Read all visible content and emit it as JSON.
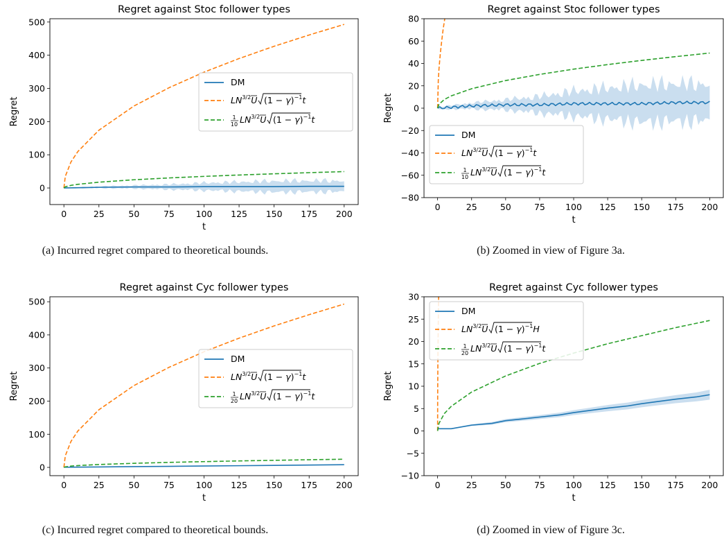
{
  "captions": [
    "(a) Incurred regret compared to theoretical bounds.",
    "(b) Zoomed in view of Figure 3a.",
    "(c) Incurred regret compared to theoretical bounds.",
    "(d) Zoomed in view of Figure 3c."
  ],
  "colors": {
    "dm": "#1f77b4",
    "bound": "#ff7f0e",
    "scaled_bound": "#2ca02c",
    "band": "#a6c8e4"
  },
  "chart_data": [
    {
      "type": "line",
      "title": "Regret against Stoc follower types",
      "xlabel": "t",
      "ylabel": "Regret",
      "xlim": [
        -10,
        210
      ],
      "ylim": [
        -50,
        510
      ],
      "xticks": [
        0,
        25,
        50,
        75,
        100,
        125,
        150,
        175,
        200
      ],
      "yticks": [
        0,
        100,
        200,
        300,
        400,
        500
      ],
      "legend_position": "center-right",
      "legend": [
        "DM",
        "LN^{3/2}Ū√((1−γ)^{−1}t)",
        "1/10 LN^{3/2}Ū√((1−γ)^{−1}t)"
      ],
      "series": [
        {
          "name": "DM",
          "style": "solid",
          "x": [
            0,
            25,
            50,
            75,
            100,
            125,
            150,
            175,
            200
          ],
          "y": [
            0,
            2,
            3,
            3,
            4,
            4,
            4,
            5,
            5
          ],
          "band_half_width": [
            1,
            3,
            5,
            8,
            12,
            15,
            18,
            18,
            18
          ]
        },
        {
          "name": "LN^{3/2}Ū√((1−γ)^{−1}t)",
          "style": "dashed",
          "x": [
            0,
            1,
            5,
            10,
            25,
            50,
            75,
            100,
            125,
            150,
            175,
            200
          ],
          "y": [
            0,
            35,
            78,
            110,
            174,
            247,
            302,
            349,
            390,
            427,
            461,
            493
          ]
        },
        {
          "name": "1/10 LN^{3/2}Ū√((1−γ)^{−1}t)",
          "style": "dashed",
          "x": [
            0,
            1,
            5,
            10,
            25,
            50,
            75,
            100,
            125,
            150,
            175,
            200
          ],
          "y": [
            0,
            3.5,
            7.8,
            11,
            17.4,
            24.7,
            30.2,
            34.9,
            39,
            42.7,
            46.1,
            49.3
          ]
        }
      ]
    },
    {
      "type": "line",
      "title": "Regret against Stoc follower types",
      "xlabel": "t",
      "ylabel": "Regret",
      "xlim": [
        -10,
        210
      ],
      "ylim": [
        -80,
        80
      ],
      "xticks": [
        0,
        25,
        50,
        75,
        100,
        125,
        150,
        175,
        200
      ],
      "yticks": [
        -80,
        -60,
        -40,
        -20,
        0,
        20,
        40,
        60,
        80
      ],
      "legend_position": "lower-left",
      "legend": [
        "DM",
        "LN^{3/2}Ū√((1−γ)^{−1}t)",
        "1/10 LN^{3/2}Ū√((1−γ)^{−1}t)"
      ],
      "series": [
        {
          "name": "DM",
          "style": "solid",
          "x": [
            0,
            25,
            50,
            75,
            100,
            125,
            150,
            175,
            200
          ],
          "y": [
            0,
            2,
            3,
            3,
            4,
            4,
            4,
            5,
            5
          ],
          "band_half_width": [
            1,
            3,
            5,
            8,
            12,
            15,
            18,
            18,
            18
          ]
        },
        {
          "name": "LN^{3/2}Ū√((1−γ)^{−1}t)",
          "style": "dashed",
          "x": [
            0,
            0.5,
            1,
            2,
            3,
            4,
            5,
            6
          ],
          "y": [
            0,
            24.6,
            35,
            49,
            60,
            70,
            78,
            86
          ]
        },
        {
          "name": "1/10 LN^{3/2}Ū√((1−γ)^{−1}t)",
          "style": "dashed",
          "x": [
            0,
            1,
            5,
            10,
            25,
            50,
            75,
            100,
            125,
            150,
            175,
            200
          ],
          "y": [
            0,
            3.5,
            7.8,
            11,
            17.4,
            24.7,
            30.2,
            34.9,
            39,
            42.7,
            46.1,
            49.3
          ]
        }
      ]
    },
    {
      "type": "line",
      "title": "Regret against Cyc follower types",
      "xlabel": "t",
      "ylabel": "Regret",
      "xlim": [
        -10,
        210
      ],
      "ylim": [
        -25,
        515
      ],
      "xticks": [
        0,
        25,
        50,
        75,
        100,
        125,
        150,
        175,
        200
      ],
      "yticks": [
        0,
        100,
        200,
        300,
        400,
        500
      ],
      "legend_position": "center-right",
      "legend": [
        "DM",
        "LN^{3/2}Ū√((1−γ)^{−1}t)",
        "1/20 LN^{3/2}Ū√((1−γ)^{−1}t)"
      ],
      "series": [
        {
          "name": "DM",
          "style": "solid",
          "x": [
            0,
            25,
            50,
            75,
            100,
            125,
            150,
            175,
            200
          ],
          "y": [
            0.5,
            1.3,
            2.3,
            3.1,
            4.1,
            5.1,
            6.1,
            7.1,
            8.1
          ]
        },
        {
          "name": "LN^{3/2}Ū√((1−γ)^{−1}t)",
          "style": "dashed",
          "x": [
            0,
            1,
            5,
            10,
            25,
            50,
            75,
            100,
            125,
            150,
            175,
            200
          ],
          "y": [
            0,
            35,
            78,
            110,
            174,
            247,
            302,
            349,
            390,
            427,
            461,
            493
          ]
        },
        {
          "name": "1/20 LN^{3/2}Ū√((1−γ)^{−1}t)",
          "style": "dashed",
          "x": [
            0,
            1,
            5,
            10,
            25,
            50,
            75,
            100,
            125,
            150,
            175,
            200
          ],
          "y": [
            0,
            1.7,
            3.9,
            5.5,
            8.7,
            12.3,
            15.1,
            17.4,
            19.5,
            21.3,
            23.1,
            24.7
          ]
        }
      ]
    },
    {
      "type": "line",
      "title": "Regret against Cyc follower types",
      "xlabel": "t",
      "ylabel": "Regret",
      "xlim": [
        -10,
        210
      ],
      "ylim": [
        -10,
        30
      ],
      "xticks": [
        0,
        25,
        50,
        75,
        100,
        125,
        150,
        175,
        200
      ],
      "yticks": [
        -10,
        -5,
        0,
        5,
        10,
        15,
        20,
        25,
        30
      ],
      "legend_position": "upper-left",
      "legend": [
        "DM",
        "LN^{3/2}Ū√((1−γ)^{−1}H)",
        "1/20 LN^{3/2}Ū√((1−γ)^{−1}t)"
      ],
      "series": [
        {
          "name": "DM",
          "style": "solid",
          "x": [
            0,
            10,
            25,
            40,
            50,
            60,
            75,
            90,
            100,
            110,
            125,
            140,
            150,
            160,
            175,
            190,
            200
          ],
          "y": [
            0.5,
            0.5,
            1.3,
            1.7,
            2.3,
            2.6,
            3.1,
            3.6,
            4.1,
            4.5,
            5.1,
            5.6,
            6.1,
            6.5,
            7.1,
            7.6,
            8.1
          ],
          "band_half_width": [
            0.05,
            0.1,
            0.2,
            0.3,
            0.35,
            0.4,
            0.45,
            0.5,
            0.55,
            0.6,
            0.7,
            0.75,
            0.8,
            0.85,
            0.9,
            1.0,
            1.1
          ]
        },
        {
          "name": "LN^{3/2}Ū√((1−γ)^{−1}H)",
          "style": "dashed",
          "x": [
            0,
            0.05,
            0.2,
            0.5,
            0.74
          ],
          "y": [
            0,
            7.8,
            15.6,
            24.6,
            30
          ]
        },
        {
          "name": "1/20 LN^{3/2}Ū√((1−γ)^{−1}t)",
          "style": "dashed",
          "x": [
            0,
            1,
            5,
            10,
            25,
            50,
            75,
            100,
            125,
            150,
            175,
            200
          ],
          "y": [
            0,
            1.7,
            3.9,
            5.5,
            8.7,
            12.3,
            15.1,
            17.4,
            19.5,
            21.3,
            23.1,
            24.7
          ]
        }
      ]
    }
  ]
}
